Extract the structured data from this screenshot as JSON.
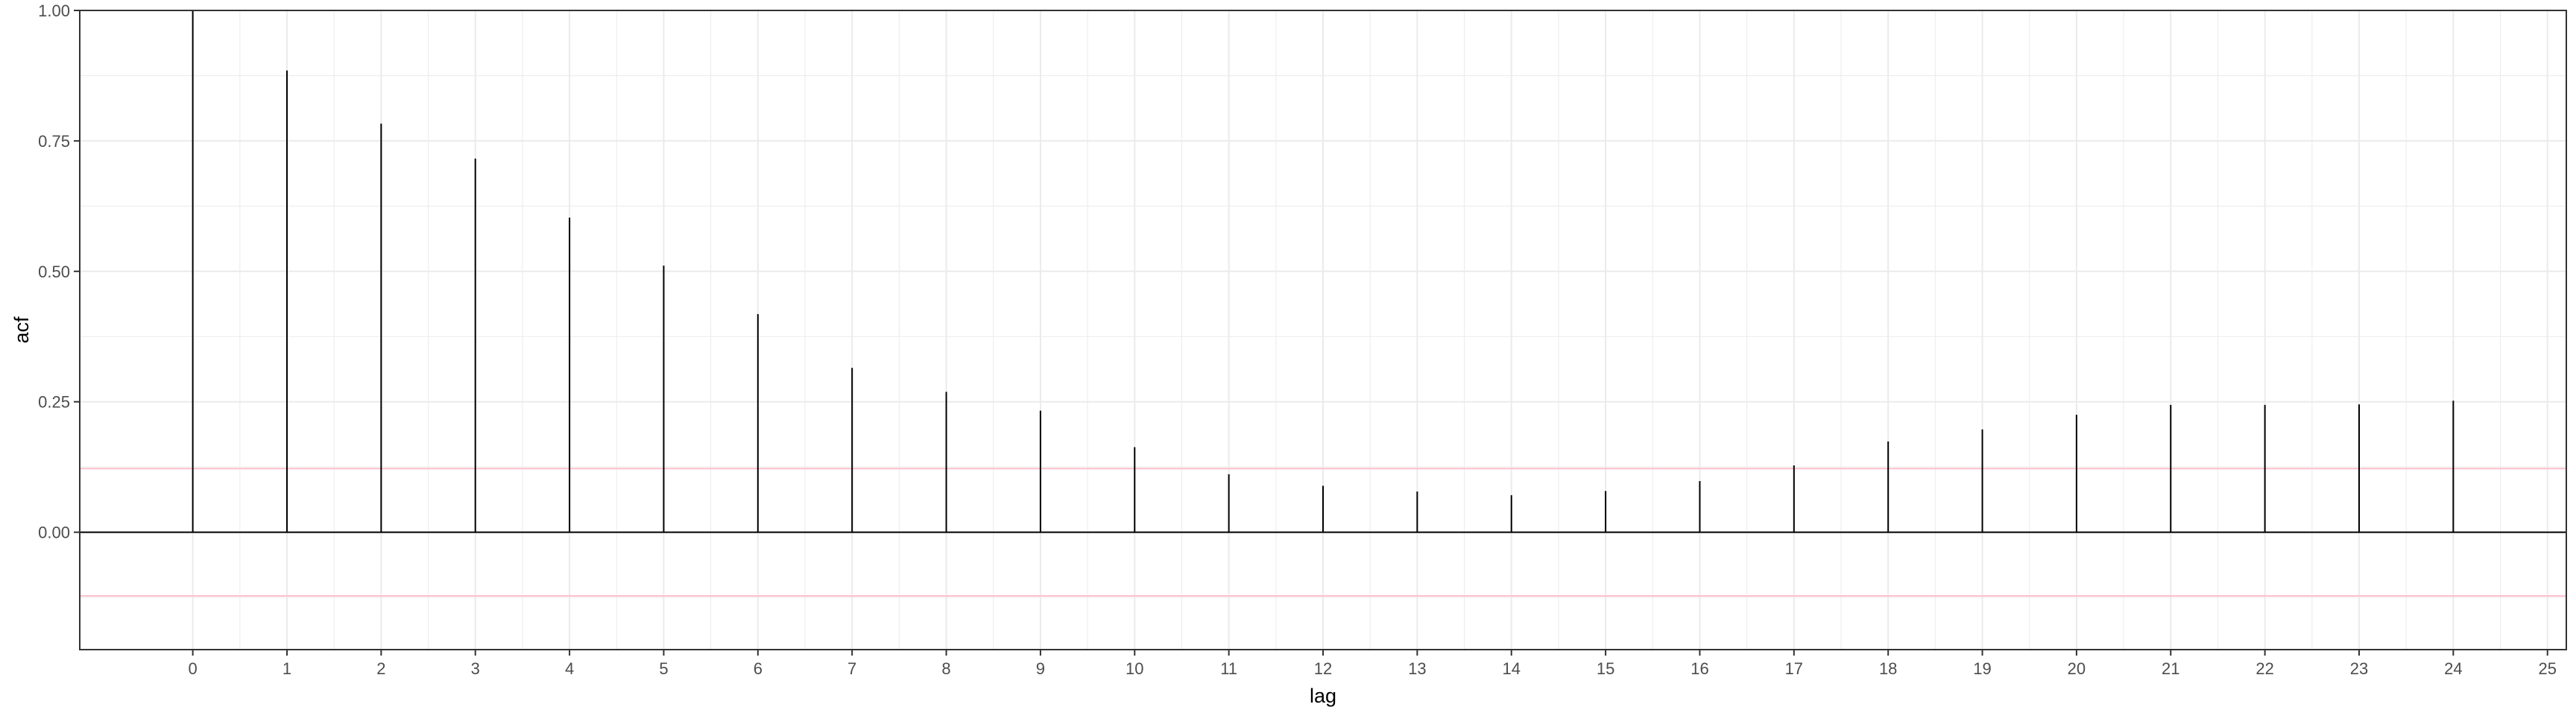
{
  "chart_data": {
    "type": "bar",
    "subtype": "acf-stem",
    "xlabel": "lag",
    "ylabel": "acf",
    "x": [
      0,
      1,
      2,
      3,
      4,
      5,
      6,
      7,
      8,
      9,
      10,
      11,
      12,
      13,
      14,
      15,
      16,
      17,
      18,
      19,
      20,
      21,
      22,
      23,
      24
    ],
    "values": [
      1.0,
      0.885,
      0.783,
      0.716,
      0.603,
      0.511,
      0.418,
      0.315,
      0.269,
      0.233,
      0.163,
      0.111,
      0.089,
      0.078,
      0.071,
      0.079,
      0.098,
      0.128,
      0.174,
      0.197,
      0.225,
      0.244,
      0.244,
      0.245,
      0.252
    ],
    "x_ticks": [
      "0",
      "1",
      "2",
      "3",
      "4",
      "5",
      "6",
      "7",
      "8",
      "9",
      "10",
      "11",
      "12",
      "13",
      "14",
      "15",
      "16",
      "17",
      "18",
      "19",
      "20",
      "21",
      "22",
      "23",
      "24",
      "25"
    ],
    "y_ticks": [
      "0.00",
      "0.25",
      "0.50",
      "0.75",
      "1.00"
    ],
    "xlim": [
      -1.2,
      25.2
    ],
    "ylim": [
      -0.225,
      1.0
    ],
    "confidence_bound": 0.122,
    "grid": true,
    "colors": {
      "stem": "#000000",
      "confidence": "#ffc0cb",
      "grid": "#ebebeb",
      "border": "#333333",
      "zero_line": "#000000"
    }
  }
}
